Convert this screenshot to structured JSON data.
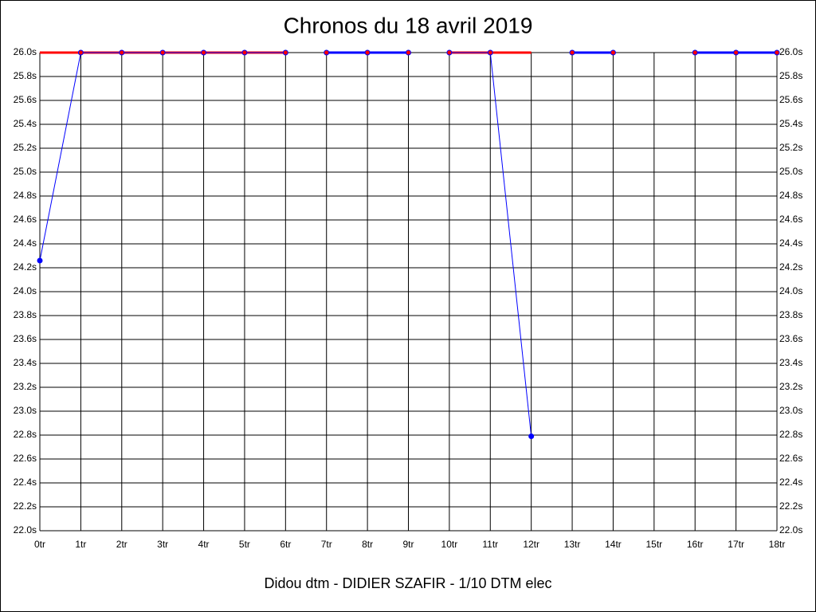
{
  "chart_data": {
    "type": "line",
    "title": "Chronos du 18 avril 2019",
    "footer": "Didou dtm - DIDIER SZAFIR - 1/10 DTM elec",
    "categories": [
      "0tr",
      "1tr",
      "2tr",
      "3tr",
      "4tr",
      "5tr",
      "6tr",
      "7tr",
      "8tr",
      "9tr",
      "10tr",
      "11tr",
      "12tr",
      "13tr",
      "14tr",
      "15tr",
      "16tr",
      "17tr",
      "18tr"
    ],
    "series": [
      {
        "color": "#0000ff",
        "values": [
          24.26,
          26.0,
          26.0,
          26.0,
          26.0,
          26.0,
          26.0,
          26.0,
          26.0,
          26.0,
          26.0,
          26.0,
          22.79,
          26.0,
          26.0,
          null,
          26.0,
          26.0,
          26.0
        ]
      }
    ],
    "heats": [
      {
        "start": 0,
        "end": 6,
        "color": "#ff0000"
      },
      {
        "start": 7,
        "end": 9,
        "color": "#0000ff"
      },
      {
        "start": 10,
        "end": 12,
        "color": "#ff0000"
      },
      {
        "start": 13,
        "end": 14,
        "color": "#0000ff"
      },
      {
        "start": 16,
        "end": 18,
        "color": "#0000ff"
      }
    ],
    "ylim": [
      22.0,
      26.0
    ],
    "yticks": [
      {
        "value": 22.0,
        "label": "22.0s"
      },
      {
        "value": 22.2,
        "label": "22.2s"
      },
      {
        "value": 22.4,
        "label": "22.4s"
      },
      {
        "value": 22.6,
        "label": "22.6s"
      },
      {
        "value": 22.8,
        "label": "22.8s"
      },
      {
        "value": 23.0,
        "label": "23.0s"
      },
      {
        "value": 23.2,
        "label": "23.2s"
      },
      {
        "value": 23.4,
        "label": "23.4s"
      },
      {
        "value": 23.6,
        "label": "23.6s"
      },
      {
        "value": 23.8,
        "label": "23.8s"
      },
      {
        "value": 24.0,
        "label": "24.0s"
      },
      {
        "value": 24.2,
        "label": "24.2s"
      },
      {
        "value": 24.4,
        "label": "24.4s"
      },
      {
        "value": 24.6,
        "label": "24.6s"
      },
      {
        "value": 24.8,
        "label": "24.8s"
      },
      {
        "value": 25.0,
        "label": "25.0s"
      },
      {
        "value": 25.2,
        "label": "25.2s"
      },
      {
        "value": 25.4,
        "label": "25.4s"
      },
      {
        "value": 25.6,
        "label": "25.6s"
      },
      {
        "value": 25.8,
        "label": "25.8s"
      },
      {
        "value": 26.0,
        "label": "26.0s"
      }
    ],
    "grid": true
  }
}
